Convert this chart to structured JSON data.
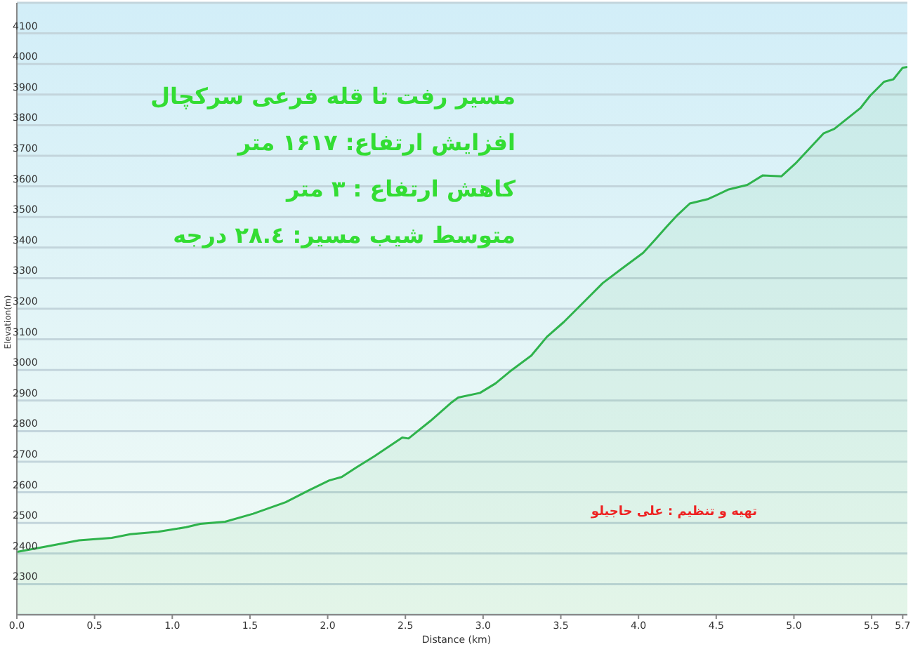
{
  "chart_data": {
    "type": "area",
    "xlabel": "Distance (km)",
    "ylabel": "Elevation(m)",
    "annotations": [
      "مسیر رفت تا قله فرعی سرکچال",
      "افزایش ارتفاع: ۱۶۱۷ متر",
      "کاهش ارتفاع : ۳ متر",
      "متوسط شیب مسیر: ۲۸.٤ درجه",
      "تهیه و تنظیم : علی حاجیلو"
    ],
    "x": [
      0,
      0.19,
      0.4,
      0.61,
      0.73,
      0.91,
      1.09,
      1.18,
      1.34,
      1.52,
      1.73,
      1.88,
      2.01,
      2.09,
      2.18,
      2.3,
      2.48,
      2.52,
      2.66,
      2.8,
      2.84,
      2.98,
      3.08,
      3.17,
      3.31,
      3.41,
      3.52,
      3.65,
      3.77,
      3.89,
      4.03,
      4.1,
      4.18,
      4.25,
      4.33,
      4.45,
      4.58,
      4.7,
      4.8,
      4.92,
      5.01,
      5.19,
      5.26,
      5.43,
      5.49,
      5.58,
      5.64,
      5.7,
      5.73
    ],
    "series": [
      {
        "color": "#2fb34c",
        "values": [
          2405,
          2423,
          2443,
          2451,
          2463,
          2471,
          2486,
          2497,
          2504,
          2530,
          2568,
          2607,
          2639,
          2650,
          2680,
          2718,
          2779,
          2776,
          2833,
          2895,
          2910,
          2925,
          2956,
          2994,
          3047,
          3108,
          3157,
          3223,
          3284,
          3330,
          3383,
          3422,
          3468,
          3506,
          3544,
          3559,
          3590,
          3605,
          3636,
          3633,
          3675,
          3773,
          3788,
          3857,
          3896,
          3942,
          3950,
          3988,
          3990
        ]
      }
    ],
    "xlim": [
      0,
      5.73
    ],
    "xticks": [
      {
        "value": 0,
        "label": "0.0"
      },
      0.5,
      {
        "value": 1,
        "label": "1.0"
      },
      1.5,
      {
        "value": 2,
        "label": "2.0"
      },
      2.5,
      {
        "value": 3,
        "label": "3.0"
      },
      3.5,
      {
        "value": 4,
        "label": "4.0"
      },
      4.5,
      {
        "value": 5,
        "label": "5.0"
      },
      5.5,
      5.7
    ],
    "ylim": [
      2200,
      4200
    ],
    "yticks": [
      2300,
      2400,
      2500,
      2600,
      2700,
      2800,
      2900,
      3000,
      3100,
      3200,
      3300,
      3400,
      3500,
      3600,
      3700,
      3800,
      3900,
      4000,
      4100
    ],
    "grid": "y"
  }
}
